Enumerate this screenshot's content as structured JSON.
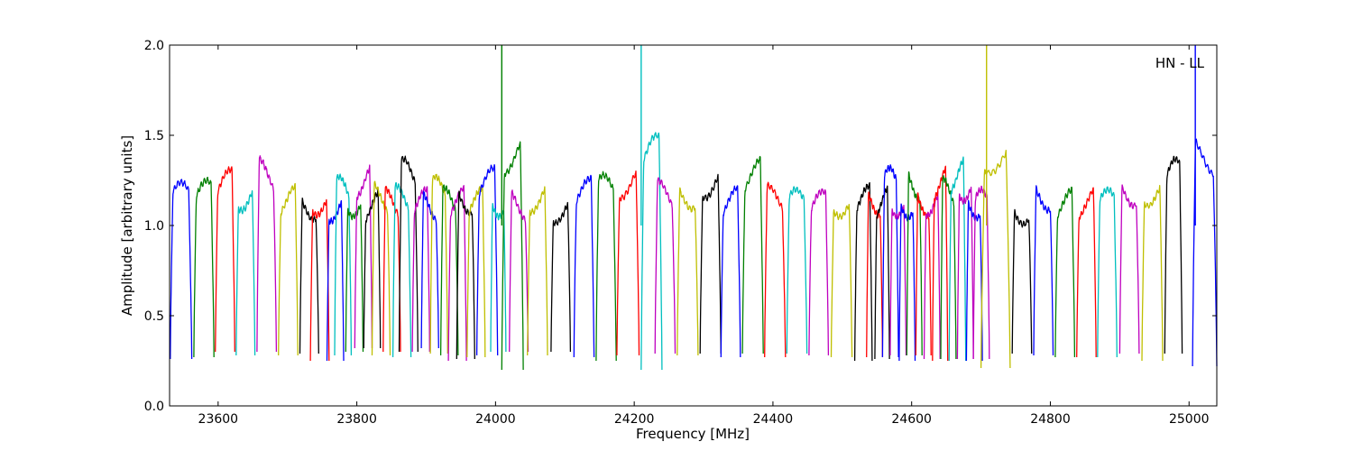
{
  "chart_data": {
    "type": "line",
    "title": "",
    "xlabel": "Frequency [MHz]",
    "ylabel": "Amplitude [arbitrary units]",
    "annotation": "HN - LL",
    "xlim": [
      23530,
      25040
    ],
    "ylim": [
      0.0,
      2.0
    ],
    "xticks": [
      23600,
      23800,
      24000,
      24200,
      24400,
      24600,
      24800,
      25000
    ],
    "xtick_labels": [
      "23600",
      "23800",
      "24000",
      "24200",
      "24400",
      "24600",
      "24800",
      "25000"
    ],
    "yticks": [
      0.0,
      0.5,
      1.0,
      1.5,
      2.0
    ],
    "ytick_labels": [
      "0.0",
      "0.5",
      "1.0",
      "1.5",
      "2.0"
    ],
    "grid": false,
    "legend": "none",
    "color_cycle": [
      "#0000ff",
      "#008000",
      "#ff0000",
      "#00bfbf",
      "#bf00bf",
      "#bfbf00",
      "#000000"
    ],
    "channels": [
      {
        "start": 23531,
        "end": 23562,
        "color": "#0000ff",
        "peak": 1.24,
        "low": 0.26
      },
      {
        "start": 23565,
        "end": 23594,
        "color": "#008000",
        "peak": 1.25,
        "low": 0.27
      },
      {
        "start": 23596,
        "end": 23624,
        "color": "#ff0000",
        "peak": 1.31,
        "low": 0.3
      },
      {
        "start": 23626,
        "end": 23653,
        "color": "#00bfbf",
        "peak": 1.26,
        "low": 0.28
      },
      {
        "start": 23656,
        "end": 23684,
        "color": "#bf00bf",
        "peak": 1.37,
        "low": 0.3
      },
      {
        "start": 23687,
        "end": 23715,
        "color": "#bfbf00",
        "peak": 1.22,
        "low": 0.28
      },
      {
        "start": 23718,
        "end": 23745,
        "color": "#000000",
        "peak": 1.2,
        "low": 0.29
      },
      {
        "start": 23733,
        "end": 23760,
        "color": "#ff0000",
        "peak": 1.23,
        "low": 0.25
      },
      {
        "start": 23757,
        "end": 23781,
        "color": "#0000ff",
        "peak": 1.19,
        "low": 0.25
      },
      {
        "start": 23768,
        "end": 23792,
        "color": "#00bfbf",
        "peak": 1.27,
        "low": 0.28
      },
      {
        "start": 23784,
        "end": 23809,
        "color": "#008000",
        "peak": 1.22,
        "low": 0.3
      },
      {
        "start": 23797,
        "end": 23822,
        "color": "#bf00bf",
        "peak": 1.35,
        "low": 0.32
      },
      {
        "start": 23810,
        "end": 23834,
        "color": "#000000",
        "peak": 1.19,
        "low": 0.32
      },
      {
        "start": 23822,
        "end": 23848,
        "color": "#bfbf00",
        "peak": 1.24,
        "low": 0.28
      },
      {
        "start": 23838,
        "end": 23863,
        "color": "#ff0000",
        "peak": 1.21,
        "low": 0.3
      },
      {
        "start": 23852,
        "end": 23878,
        "color": "#00bfbf",
        "peak": 1.22,
        "low": 0.27
      },
      {
        "start": 23861,
        "end": 23888,
        "color": "#000000",
        "peak": 1.37,
        "low": 0.3
      },
      {
        "start": 23880,
        "end": 23905,
        "color": "#bf00bf",
        "peak": 1.2,
        "low": 0.3
      },
      {
        "start": 23893,
        "end": 23918,
        "color": "#0000ff",
        "peak": 1.2,
        "low": 0.32
      },
      {
        "start": 23906,
        "end": 23931,
        "color": "#bfbf00",
        "peak": 1.27,
        "low": 0.29
      },
      {
        "start": 23921,
        "end": 23946,
        "color": "#008000",
        "peak": 1.21,
        "low": 0.28
      },
      {
        "start": 23932,
        "end": 23958,
        "color": "#bf00bf",
        "peak": 1.21,
        "low": 0.25
      },
      {
        "start": 23944,
        "end": 23970,
        "color": "#000000",
        "peak": 1.24,
        "low": 0.26
      },
      {
        "start": 23959,
        "end": 23985,
        "color": "#bfbf00",
        "peak": 1.2,
        "low": 0.27
      },
      {
        "start": 23973,
        "end": 24003,
        "color": "#0000ff",
        "peak": 1.32,
        "low": 0.28
      },
      {
        "start": 23993,
        "end": 24015,
        "color": "#00bfbf",
        "peak": 1.22,
        "low": 0.3
      },
      {
        "start": 24009,
        "end": 24040,
        "color": "#008000",
        "peak": 1.5,
        "low": 0.2
      },
      {
        "start": 24020,
        "end": 24047,
        "color": "#bf00bf",
        "peak": 1.2,
        "low": 0.3
      },
      {
        "start": 24046,
        "end": 24075,
        "color": "#bfbf00",
        "peak": 1.25,
        "low": 0.28
      },
      {
        "start": 24080,
        "end": 24108,
        "color": "#000000",
        "peak": 1.18,
        "low": 0.3
      },
      {
        "start": 24113,
        "end": 24142,
        "color": "#0000ff",
        "peak": 1.26,
        "low": 0.27
      },
      {
        "start": 24145,
        "end": 24174,
        "color": "#008000",
        "peak": 1.28,
        "low": 0.25
      },
      {
        "start": 24175,
        "end": 24207,
        "color": "#ff0000",
        "peak": 1.34,
        "low": 0.28
      },
      {
        "start": 24210,
        "end": 24240,
        "color": "#00bfbf",
        "peak": 1.5,
        "low": 0.2
      },
      {
        "start": 24230,
        "end": 24259,
        "color": "#bf00bf",
        "peak": 1.25,
        "low": 0.29
      },
      {
        "start": 24262,
        "end": 24292,
        "color": "#bfbf00",
        "peak": 1.27,
        "low": 0.28
      },
      {
        "start": 24295,
        "end": 24325,
        "color": "#000000",
        "peak": 1.34,
        "low": 0.29
      },
      {
        "start": 24325,
        "end": 24353,
        "color": "#0000ff",
        "peak": 1.21,
        "low": 0.27
      },
      {
        "start": 24356,
        "end": 24386,
        "color": "#008000",
        "peak": 1.37,
        "low": 0.29
      },
      {
        "start": 24388,
        "end": 24418,
        "color": "#ff0000",
        "peak": 1.22,
        "low": 0.27
      },
      {
        "start": 24420,
        "end": 24449,
        "color": "#00bfbf",
        "peak": 1.2,
        "low": 0.29
      },
      {
        "start": 24452,
        "end": 24480,
        "color": "#bf00bf",
        "peak": 1.19,
        "low": 0.28
      },
      {
        "start": 24484,
        "end": 24514,
        "color": "#bfbf00",
        "peak": 1.22,
        "low": 0.27
      },
      {
        "start": 24518,
        "end": 24543,
        "color": "#000000",
        "peak": 1.22,
        "low": 0.25
      },
      {
        "start": 24535,
        "end": 24558,
        "color": "#ff0000",
        "peak": 1.23,
        "low": 0.27
      },
      {
        "start": 24547,
        "end": 24568,
        "color": "#000000",
        "peak": 1.21,
        "low": 0.26
      },
      {
        "start": 24558,
        "end": 24581,
        "color": "#0000ff",
        "peak": 1.32,
        "low": 0.27
      },
      {
        "start": 24569,
        "end": 24592,
        "color": "#bf00bf",
        "peak": 1.22,
        "low": 0.28
      },
      {
        "start": 24582,
        "end": 24605,
        "color": "#0000ff",
        "peak": 1.21,
        "low": 0.25
      },
      {
        "start": 24593,
        "end": 24615,
        "color": "#008000",
        "peak": 1.33,
        "low": 0.28
      },
      {
        "start": 24606,
        "end": 24628,
        "color": "#ff0000",
        "peak": 1.22,
        "low": 0.28
      },
      {
        "start": 24618,
        "end": 24641,
        "color": "#bf00bf",
        "peak": 1.23,
        "low": 0.26
      },
      {
        "start": 24630,
        "end": 24652,
        "color": "#ff0000",
        "peak": 1.33,
        "low": 0.25
      },
      {
        "start": 24642,
        "end": 24664,
        "color": "#008000",
        "peak": 1.26,
        "low": 0.26
      },
      {
        "start": 24654,
        "end": 24678,
        "color": "#00bfbf",
        "peak": 1.38,
        "low": 0.25
      },
      {
        "start": 24666,
        "end": 24689,
        "color": "#bf00bf",
        "peak": 1.32,
        "low": 0.26
      },
      {
        "start": 24679,
        "end": 24702,
        "color": "#0000ff",
        "peak": 1.21,
        "low": 0.25
      },
      {
        "start": 24689,
        "end": 24712,
        "color": "#bf00bf",
        "peak": 1.2,
        "low": 0.26
      },
      {
        "start": 24700,
        "end": 24742,
        "color": "#bfbf00",
        "peak": 1.5,
        "low": 0.21
      },
      {
        "start": 24745,
        "end": 24773,
        "color": "#000000",
        "peak": 1.17,
        "low": 0.29
      },
      {
        "start": 24776,
        "end": 24804,
        "color": "#0000ff",
        "peak": 1.26,
        "low": 0.28
      },
      {
        "start": 24807,
        "end": 24835,
        "color": "#008000",
        "peak": 1.2,
        "low": 0.27
      },
      {
        "start": 24838,
        "end": 24866,
        "color": "#ff0000",
        "peak": 1.21,
        "low": 0.27
      },
      {
        "start": 24868,
        "end": 24896,
        "color": "#00bfbf",
        "peak": 1.2,
        "low": 0.27
      },
      {
        "start": 24900,
        "end": 24928,
        "color": "#bf00bf",
        "peak": 1.29,
        "low": 0.29
      },
      {
        "start": 24932,
        "end": 24962,
        "color": "#bfbf00",
        "peak": 1.29,
        "low": 0.25
      },
      {
        "start": 24965,
        "end": 24990,
        "color": "#000000",
        "peak": 1.37,
        "low": 0.29
      },
      {
        "start": 25005,
        "end": 25040,
        "color": "#0000ff",
        "peak": 1.49,
        "low": 0.22
      }
    ],
    "spikes": [
      {
        "x": 24009,
        "top": 2.0,
        "color": "#008000"
      },
      {
        "x": 24210,
        "top": 2.0,
        "color": "#00bfbf"
      },
      {
        "x": 24708,
        "top": 2.0,
        "color": "#bfbf00"
      },
      {
        "x": 25009,
        "top": 2.0,
        "color": "#0000ff"
      }
    ]
  }
}
